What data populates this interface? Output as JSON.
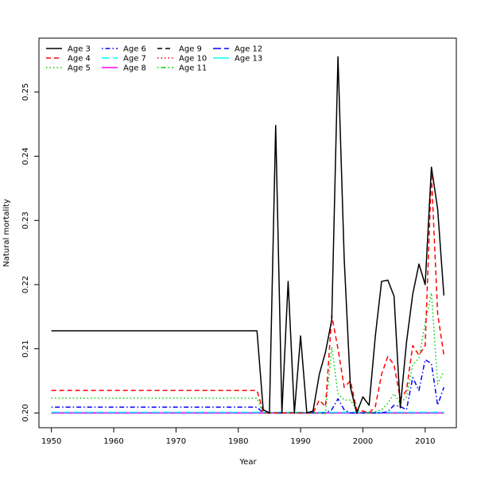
{
  "chart_data": {
    "type": "line",
    "title": "",
    "xlabel": "Year",
    "ylabel": "Natural mortality",
    "xlim": [
      1948,
      2015
    ],
    "ylim": [
      0.1977,
      0.2584
    ],
    "x_ticks": [
      1950,
      1960,
      1970,
      1980,
      1990,
      2000,
      2010
    ],
    "y_ticks": [
      0.2,
      0.21,
      0.22,
      0.23,
      0.24,
      0.25
    ],
    "x_tick_labels": [
      "1950",
      "1960",
      "1970",
      "1980",
      "1990",
      "2000",
      "2010"
    ],
    "y_tick_labels": [
      "0.20",
      "0.21",
      "0.22",
      "0.23",
      "0.24",
      "0.25"
    ],
    "grid": false,
    "legend_position": "top-left",
    "x_start": 1950,
    "x_end": 2013,
    "series": [
      {
        "name": "Age 3",
        "color": "#000000",
        "dash": "solid",
        "constant_until": 1983,
        "constant_value": 0.2128,
        "tail": [
          [
            1984,
            0.2005
          ],
          [
            1985,
            0.2
          ],
          [
            1986,
            0.2448
          ],
          [
            1987,
            0.2
          ],
          [
            1988,
            0.2205
          ],
          [
            1989,
            0.2
          ],
          [
            1990,
            0.212
          ],
          [
            1991,
            0.2
          ],
          [
            1992,
            0.2003
          ],
          [
            1993,
            0.206
          ],
          [
            1994,
            0.2095
          ],
          [
            1995,
            0.2145
          ],
          [
            1996,
            0.2555
          ],
          [
            1997,
            0.224
          ],
          [
            1998,
            0.204
          ],
          [
            1999,
            0.2
          ],
          [
            2000,
            0.2025
          ],
          [
            2001,
            0.2012
          ],
          [
            2002,
            0.212
          ],
          [
            2003,
            0.2205
          ],
          [
            2004,
            0.2207
          ],
          [
            2005,
            0.2182
          ],
          [
            2006,
            0.2008
          ],
          [
            2007,
            0.211
          ],
          [
            2008,
            0.2185
          ],
          [
            2009,
            0.2232
          ],
          [
            2010,
            0.22
          ],
          [
            2011,
            0.2383
          ],
          [
            2012,
            0.2318
          ],
          [
            2013,
            0.2183
          ]
        ]
      },
      {
        "name": "Age 4",
        "color": "#ff0000",
        "dash": "dashed",
        "constant_until": 1983,
        "constant_value": 0.2035,
        "tail": [
          [
            1984,
            0.2002
          ],
          [
            1985,
            0.2
          ],
          [
            1986,
            0.2
          ],
          [
            1987,
            0.2
          ],
          [
            1988,
            0.2
          ],
          [
            1989,
            0.2
          ],
          [
            1990,
            0.2
          ],
          [
            1991,
            0.2
          ],
          [
            1992,
            0.2
          ],
          [
            1993,
            0.202
          ],
          [
            1994,
            0.201
          ],
          [
            1995,
            0.2152
          ],
          [
            1996,
            0.21
          ],
          [
            1997,
            0.204
          ],
          [
            1998,
            0.205
          ],
          [
            1999,
            0.2005
          ],
          [
            2000,
            0.2003
          ],
          [
            2001,
            0.2
          ],
          [
            2002,
            0.201
          ],
          [
            2003,
            0.206
          ],
          [
            2004,
            0.2088
          ],
          [
            2005,
            0.2075
          ],
          [
            2006,
            0.2022
          ],
          [
            2007,
            0.2035
          ],
          [
            2008,
            0.2105
          ],
          [
            2009,
            0.209
          ],
          [
            2010,
            0.2105
          ],
          [
            2011,
            0.2373
          ],
          [
            2012,
            0.2155
          ],
          [
            2013,
            0.209
          ]
        ]
      },
      {
        "name": "Age 5",
        "color": "#00cd00",
        "dash": "dotted",
        "constant_until": 1983,
        "constant_value": 0.2023,
        "tail": [
          [
            1984,
            0.2
          ],
          [
            1985,
            0.2
          ],
          [
            1986,
            0.2
          ],
          [
            1987,
            0.2
          ],
          [
            1988,
            0.2
          ],
          [
            1989,
            0.2
          ],
          [
            1990,
            0.2
          ],
          [
            1991,
            0.2
          ],
          [
            1992,
            0.2
          ],
          [
            1993,
            0.2
          ],
          [
            1994,
            0.2
          ],
          [
            1995,
            0.2103
          ],
          [
            1996,
            0.203
          ],
          [
            1997,
            0.202
          ],
          [
            1998,
            0.202
          ],
          [
            1999,
            0.2005
          ],
          [
            2000,
            0.2
          ],
          [
            2001,
            0.2
          ],
          [
            2002,
            0.2002
          ],
          [
            2003,
            0.2005
          ],
          [
            2004,
            0.2015
          ],
          [
            2005,
            0.203
          ],
          [
            2006,
            0.2015
          ],
          [
            2007,
            0.2025
          ],
          [
            2008,
            0.2075
          ],
          [
            2009,
            0.2085
          ],
          [
            2010,
            0.214
          ],
          [
            2011,
            0.2187
          ],
          [
            2012,
            0.2045
          ],
          [
            2013,
            0.2065
          ]
        ]
      },
      {
        "name": "Age 6",
        "color": "#0000ff",
        "dash": "dotdash",
        "constant_until": 1983,
        "constant_value": 0.2009,
        "tail": [
          [
            1984,
            0.2
          ],
          [
            1985,
            0.2
          ],
          [
            1986,
            0.2
          ],
          [
            1987,
            0.2
          ],
          [
            1988,
            0.2
          ],
          [
            1989,
            0.2
          ],
          [
            1990,
            0.2
          ],
          [
            1991,
            0.2
          ],
          [
            1992,
            0.2
          ],
          [
            1993,
            0.2
          ],
          [
            1994,
            0.2
          ],
          [
            1995,
            0.2005
          ],
          [
            1996,
            0.2022
          ],
          [
            1997,
            0.2005
          ],
          [
            1998,
            0.2
          ],
          [
            1999,
            0.2
          ],
          [
            2000,
            0.2
          ],
          [
            2001,
            0.2
          ],
          [
            2002,
            0.2
          ],
          [
            2003,
            0.2
          ],
          [
            2004,
            0.2002
          ],
          [
            2005,
            0.2012
          ],
          [
            2006,
            0.201
          ],
          [
            2007,
            0.2005
          ],
          [
            2008,
            0.2055
          ],
          [
            2009,
            0.2035
          ],
          [
            2010,
            0.2083
          ],
          [
            2011,
            0.2077
          ],
          [
            2012,
            0.2012
          ],
          [
            2013,
            0.204
          ]
        ]
      },
      {
        "name": "Age 7",
        "color": "#00ffff",
        "dash": "longdash",
        "constant_until": 2013,
        "constant_value": 0.2001,
        "tail": []
      },
      {
        "name": "Age 8",
        "color": "#ff00ff",
        "dash": "solid",
        "constant_until": 2013,
        "constant_value": 0.2,
        "tail": []
      },
      {
        "name": "Age 9",
        "color": "#000000",
        "dash": "dashed",
        "constant_until": 2013,
        "constant_value": 0.2,
        "tail": []
      },
      {
        "name": "Age 10",
        "color": "#ff0000",
        "dash": "dotted",
        "constant_until": 2013,
        "constant_value": 0.2,
        "tail": []
      },
      {
        "name": "Age 11",
        "color": "#00cd00",
        "dash": "dotdash",
        "constant_until": 2013,
        "constant_value": 0.2,
        "tail": []
      },
      {
        "name": "Age 12",
        "color": "#0000ff",
        "dash": "longdash",
        "constant_until": 2013,
        "constant_value": 0.2,
        "tail": []
      },
      {
        "name": "Age 13",
        "color": "#00ffff",
        "dash": "solid",
        "constant_until": 2013,
        "constant_value": 0.2,
        "tail": []
      }
    ]
  }
}
